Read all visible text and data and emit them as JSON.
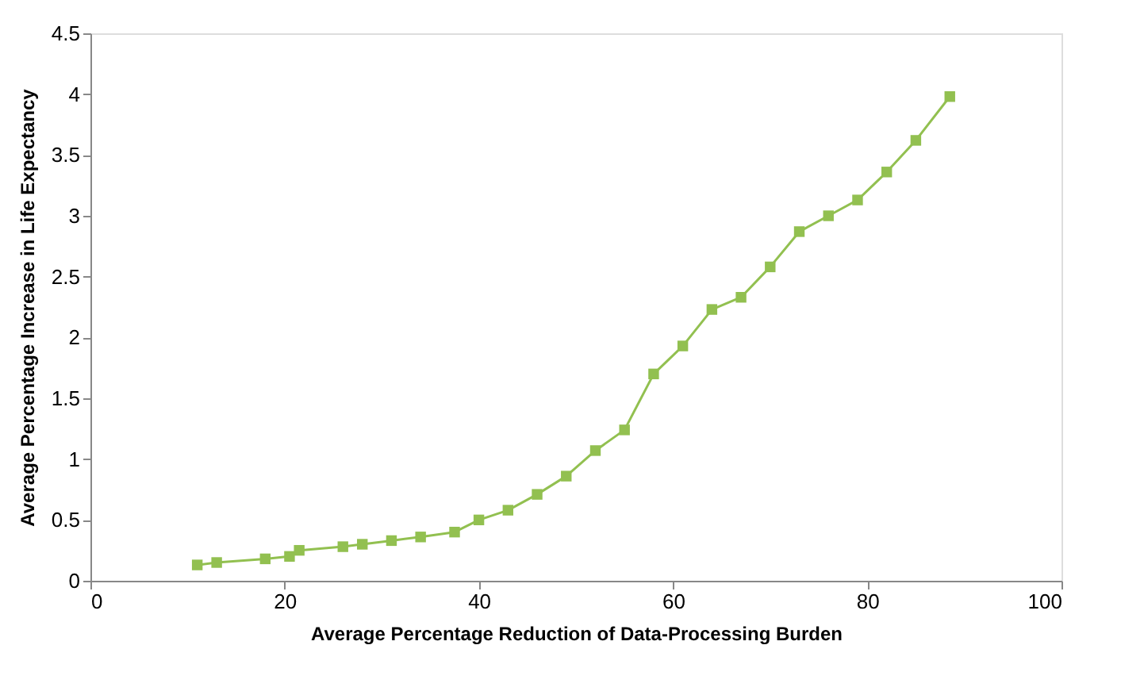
{
  "chart_data": {
    "type": "line",
    "xlabel": "Average Percentage Reduction of Data-Processing Burden",
    "ylabel": "Average Percentage Increase in Life Expectancy",
    "x": [
      11,
      13,
      18,
      20.5,
      21.5,
      26,
      28,
      31,
      34,
      37.5,
      40,
      43,
      46,
      49,
      52,
      55,
      58,
      61,
      64,
      67,
      70,
      73,
      76,
      79,
      82,
      85,
      88.5
    ],
    "series": [
      {
        "color": "#92c050",
        "values": [
          0.13,
          0.15,
          0.18,
          0.2,
          0.25,
          0.28,
          0.3,
          0.33,
          0.36,
          0.4,
          0.5,
          0.58,
          0.71,
          0.86,
          1.07,
          1.24,
          1.7,
          1.93,
          2.23,
          2.33,
          2.58,
          2.87,
          3.0,
          3.13,
          3.36,
          3.62,
          3.98
        ]
      }
    ],
    "xlim": [
      0,
      100
    ],
    "xticks": [
      0,
      20,
      40,
      60,
      80,
      100
    ],
    "ylim": [
      0,
      4.5
    ],
    "yticks": [
      0,
      0.5,
      1,
      1.5,
      2,
      2.5,
      3,
      3.5,
      4,
      4.5
    ],
    "grid": false,
    "marker": "square",
    "line_style": "solid"
  }
}
